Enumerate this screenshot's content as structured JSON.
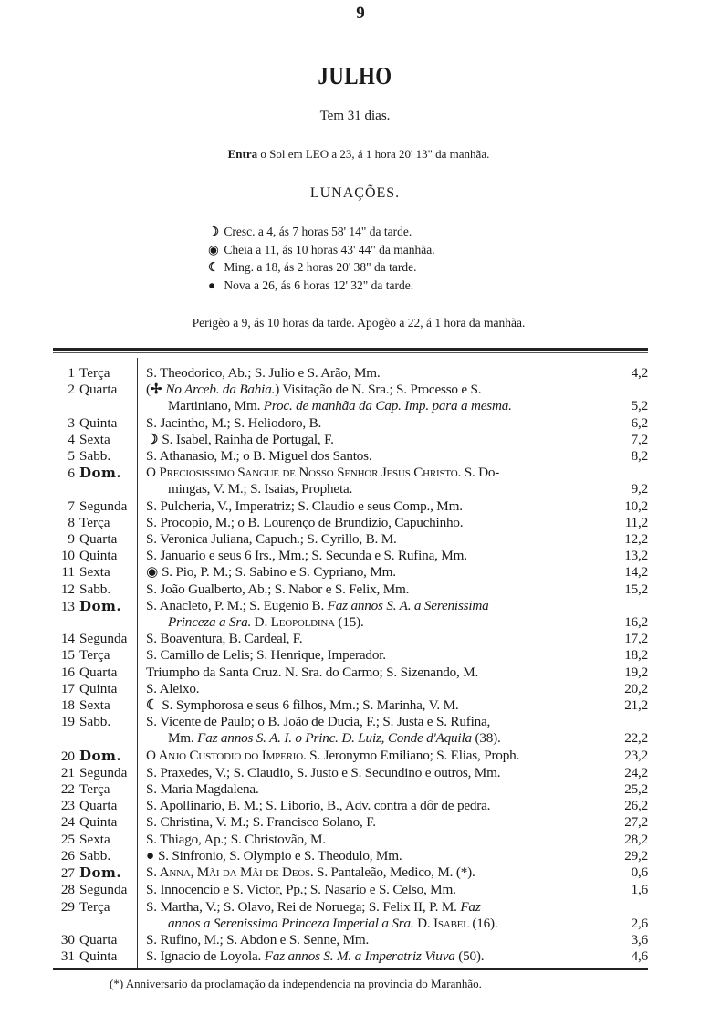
{
  "page_number": "9",
  "title": "JULHO",
  "days_text": "Tem 31 dias.",
  "sun_entry": {
    "lead": "Entra",
    "text": " o Sol em LEO a 23, á 1 hora 20' 13\" da manhãa."
  },
  "lunations_heading": "LUNAÇÕES.",
  "lunations": [
    {
      "icon": "first-quarter-moon-icon",
      "text": "Cresc. a  4, ás  7 horas 58' 14\" da tarde."
    },
    {
      "icon": "full-moon-icon",
      "text": "Cheia  a 11, ás 10 horas 43' 44\" da manhãa."
    },
    {
      "icon": "last-quarter-moon-icon",
      "text": "Ming.  a 18, ás  2 horas 20' 38\" da tarde."
    },
    {
      "icon": "new-moon-icon",
      "text": "Nova   a 26, ás  6 horas 12' 32\" da tarde."
    }
  ],
  "perigee_apogee": "Perigèo a 9, ás 10 horas da tarde.  Apogèo a 22, á 1 hora da manhãa.",
  "calendar": {
    "rows": [
      {
        "day": "1",
        "weekday": "Terça",
        "lines": [
          [
            {
              "t": "S. Theodorico, Ab.; S. Julio e S. Arão, Mm."
            }
          ]
        ],
        "value": "4,2"
      },
      {
        "day": "2",
        "weekday": "Quarta",
        "lines": [
          [
            {
              "t": "("
            },
            {
              "icon": "cross-icon"
            },
            {
              "t": "No Arceb. da Bahia.",
              "s": "i"
            },
            {
              "t": ") Visitação de N. Sra.; S. Processo e S."
            }
          ],
          [
            {
              "t": "Martiniano, Mm. "
            },
            {
              "t": "Proc. de manhãa da Cap. Imp. para a mesma.",
              "s": "i"
            }
          ]
        ],
        "value": "5,2"
      },
      {
        "day": "3",
        "weekday": "Quinta",
        "lines": [
          [
            {
              "t": "S. Jacintho, M.; S. Heliodoro, B."
            }
          ]
        ],
        "value": "6,2"
      },
      {
        "day": "4",
        "weekday": "Sexta",
        "lines": [
          [
            {
              "icon": "first-quarter-moon-icon"
            },
            {
              "t": "S. Isabel, Rainha de Portugal, F."
            }
          ]
        ],
        "value": "7,2"
      },
      {
        "day": "5",
        "weekday": "Sabb.",
        "lines": [
          [
            {
              "t": "S. Athanasio, M.; o B. Miguel dos Santos."
            }
          ]
        ],
        "value": "8,2"
      },
      {
        "day": "6",
        "weekday": "Dom.",
        "sunday": true,
        "lines": [
          [
            {
              "t": "O Preciosissimo Sangue de Nosso Senhor Jesus Christo.",
              "s": "sc"
            },
            {
              "t": " S. Do-"
            }
          ],
          [
            {
              "t": "mingas, V. M.; S. Isaias, Propheta."
            }
          ]
        ],
        "value": "9,2"
      },
      {
        "day": "7",
        "weekday": "Segunda",
        "lines": [
          [
            {
              "t": "S. Pulcheria, V., Imperatriz; S. Claudio e seus Comp., Mm."
            }
          ]
        ],
        "value": "10,2"
      },
      {
        "day": "8",
        "weekday": "Terça",
        "lines": [
          [
            {
              "t": "S. Procopio, M.; o B. Lourenço de Brundizio, Capuchinho."
            }
          ]
        ],
        "value": "11,2"
      },
      {
        "day": "9",
        "weekday": "Quarta",
        "lines": [
          [
            {
              "t": "S. Veronica Juliana, Capuch.; S. Cyrillo, B. M."
            }
          ]
        ],
        "value": "12,2"
      },
      {
        "day": "10",
        "weekday": "Quinta",
        "lines": [
          [
            {
              "t": "S. Januario e seus 6 Irs., Mm.; S. Secunda e S. Rufina, Mm."
            }
          ]
        ],
        "value": "13,2"
      },
      {
        "day": "11",
        "weekday": "Sexta",
        "lines": [
          [
            {
              "icon": "full-moon-icon"
            },
            {
              "t": "S. Pio, P. M.; S. Sabino e S. Cypriano, Mm."
            }
          ]
        ],
        "value": "14,2"
      },
      {
        "day": "12",
        "weekday": "Sabb.",
        "lines": [
          [
            {
              "t": "S. João Gualberto, Ab.; S. Nabor e S. Felix, Mm."
            }
          ]
        ],
        "value": "15,2"
      },
      {
        "day": "13",
        "weekday": "Dom.",
        "sunday": true,
        "lines": [
          [
            {
              "t": "S. Anacleto, P. M.; S. Eugenio B. "
            },
            {
              "t": "Faz annos S. A. a Serenissima",
              "s": "i"
            }
          ],
          [
            {
              "t": "Princeza a Sra.",
              "s": "i"
            },
            {
              "t": " D. "
            },
            {
              "t": "Leopoldina",
              "s": "sc"
            },
            {
              "t": " (15)."
            }
          ]
        ],
        "value": "16,2"
      },
      {
        "day": "14",
        "weekday": "Segunda",
        "lines": [
          [
            {
              "t": "S. Boaventura, B. Cardeal, F."
            }
          ]
        ],
        "value": "17,2"
      },
      {
        "day": "15",
        "weekday": "Terça",
        "lines": [
          [
            {
              "t": "S. Camillo de Lelis; S. Henrique, Imperador."
            }
          ]
        ],
        "value": "18,2"
      },
      {
        "day": "16",
        "weekday": "Quarta",
        "lines": [
          [
            {
              "t": "Triumpho da Santa Cruz.  N. Sra. do Carmo; S. Sizenando, M."
            }
          ]
        ],
        "value": "19,2"
      },
      {
        "day": "17",
        "weekday": "Quinta",
        "lines": [
          [
            {
              "t": "S. Aleixo."
            }
          ]
        ],
        "value": "20,2"
      },
      {
        "day": "18",
        "weekday": "Sexta",
        "lines": [
          [
            {
              "icon": "last-quarter-moon-icon"
            },
            {
              "t": "S. Symphorosa e seus 6 filhos, Mm.; S. Marinha, V. M."
            }
          ]
        ],
        "value": "21,2"
      },
      {
        "day": "19",
        "weekday": "Sabb.",
        "lines": [
          [
            {
              "t": "S. Vicente de Paulo; o B. João de Ducia, F.; S. Justa e S. Rufina,"
            }
          ],
          [
            {
              "t": "Mm. "
            },
            {
              "t": "Faz annos S. A. I. o Princ. D. Luiz, Conde d'Aquila",
              "s": "i"
            },
            {
              "t": " (38)."
            }
          ]
        ],
        "value": "22,2"
      },
      {
        "day": "20",
        "weekday": "Dom.",
        "sunday": true,
        "lines": [
          [
            {
              "t": "O Anjo Custodio do Imperio.",
              "s": "sc"
            },
            {
              "t": " S. Jeronymo Emiliano; S. Elias, Proph."
            }
          ]
        ],
        "value": "23,2"
      },
      {
        "day": "21",
        "weekday": "Segunda",
        "lines": [
          [
            {
              "t": "S. Praxedes, V.; S. Claudio, S. Justo e S. Secundino e outros, Mm."
            }
          ]
        ],
        "value": "24,2"
      },
      {
        "day": "22",
        "weekday": "Terça",
        "lines": [
          [
            {
              "t": "S. Maria Magdalena."
            }
          ]
        ],
        "value": "25,2"
      },
      {
        "day": "23",
        "weekday": "Quarta",
        "lines": [
          [
            {
              "t": "S. Apollinario, B. M.; S. Liborio, B., Adv. contra a dôr de pedra."
            }
          ]
        ],
        "value": "26,2"
      },
      {
        "day": "24",
        "weekday": "Quinta",
        "lines": [
          [
            {
              "t": "S. Christina, V. M.; S. Francisco Solano, F."
            }
          ]
        ],
        "value": "27,2"
      },
      {
        "day": "25",
        "weekday": "Sexta",
        "lines": [
          [
            {
              "t": "S. Thiago, Ap.; S. Christovão, M."
            }
          ]
        ],
        "value": "28,2"
      },
      {
        "day": "26",
        "weekday": "Sabb.",
        "lines": [
          [
            {
              "icon": "new-moon-icon"
            },
            {
              "t": "S. Sinfronio, S. Olympio e S. Theodulo, Mm."
            }
          ]
        ],
        "value": "29,2"
      },
      {
        "day": "27",
        "weekday": "Dom.",
        "sunday": true,
        "lines": [
          [
            {
              "t": "S. Anna, Mãi da Mãi de Deos.",
              "s": "sc"
            },
            {
              "t": " S. Pantaleão, Medico, M. (*)."
            }
          ]
        ],
        "value": "0,6"
      },
      {
        "day": "28",
        "weekday": "Segunda",
        "lines": [
          [
            {
              "t": "S. Innocencio e S. Victor, Pp.; S. Nasario e S. Celso, Mm."
            }
          ]
        ],
        "value": "1,6"
      },
      {
        "day": "29",
        "weekday": "Terça",
        "lines": [
          [
            {
              "t": "S. Martha, V.; S. Olavo, Rei de Noruega; S. Felix II, P. M. "
            },
            {
              "t": "Faz",
              "s": "i"
            }
          ],
          [
            {
              "t": "annos a Serenissima Princeza Imperial a Sra.",
              "s": "i"
            },
            {
              "t": " D. "
            },
            {
              "t": "Isabel",
              "s": "sc"
            },
            {
              "t": " (16)."
            }
          ]
        ],
        "value": "2,6"
      },
      {
        "day": "30",
        "weekday": "Quarta",
        "lines": [
          [
            {
              "t": "S. Rufino, M.; S. Abdon e S. Senne, Mm."
            }
          ]
        ],
        "value": "3,6"
      },
      {
        "day": "31",
        "weekday": "Quinta",
        "lines": [
          [
            {
              "t": "S. Ignacio de Loyola. "
            },
            {
              "t": "Faz annos S. M. a Imperatriz Viuva",
              "s": "i"
            },
            {
              "t": " (50)."
            }
          ]
        ],
        "value": "4,6"
      }
    ]
  },
  "footnote": "(*) Anniversario da proclamação da independencia na provincia do Maranhão."
}
